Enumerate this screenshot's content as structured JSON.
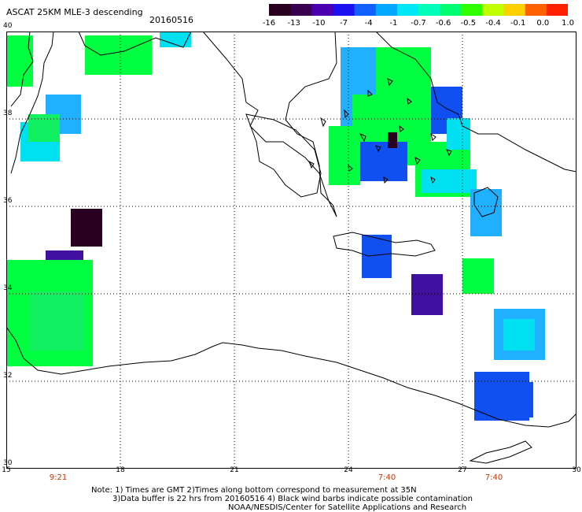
{
  "title": "ASCAT 25KM MLE-3 descending",
  "date": "20160516",
  "colorbar": {
    "ticks": [
      "-16",
      "-13",
      "-10",
      "-7",
      "-4",
      "-1",
      "-0.7",
      "-0.6",
      "-0.5",
      "-0.4",
      "-0.1",
      "0.0",
      "1.0"
    ],
    "colors": [
      "#2a0020",
      "#3a0050",
      "#4a00b0",
      "#1a10f0",
      "#1060ff",
      "#00a8ff",
      "#00e8f8",
      "#00ffb8",
      "#00ff70",
      "#30ff00",
      "#c0ff00",
      "#ffd000",
      "#ff6000",
      "#ff2000"
    ]
  },
  "axes": {
    "lat_labels": [
      "40",
      "38",
      "36",
      "34",
      "32",
      "30"
    ],
    "lon_labels": [
      "15",
      "18",
      "21",
      "24",
      "27",
      "30"
    ]
  },
  "times": [
    "9:21",
    "7:40",
    "7:40"
  ],
  "notes": [
    "Note: 1) Times are GMT 2)Times along bottom correspond to measurement at 35N",
    "3)Data buffer is 22 hrs from 20160516 4) Black wind barbs indicate possible contamination",
    "NOAA/NESDIS/Center for Satellite Applications and Research"
  ],
  "swath_colors": {
    "green": "#00ff40",
    "green_light": "#10f060",
    "cyan": "#00e0f0",
    "sky": "#20b0ff",
    "blue": "#1050f0",
    "violet": "#4010a0",
    "dark": "#2a0020"
  }
}
